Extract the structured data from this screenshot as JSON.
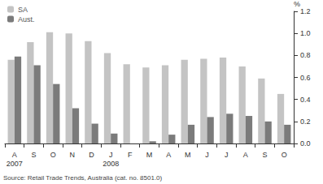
{
  "chart_data": {
    "type": "bar",
    "y_label": "%",
    "categories": [
      "A\n2007",
      "S",
      "O",
      "N",
      "D",
      "J\n2008",
      "F",
      "M",
      "A",
      "M",
      "J",
      "J",
      "A",
      "S",
      "O"
    ],
    "series": [
      {
        "name": "SA",
        "color": "#c4c4c4",
        "values": [
          0.76,
          0.92,
          1.01,
          1.0,
          0.93,
          0.82,
          0.72,
          0.69,
          0.71,
          0.76,
          0.77,
          0.78,
          0.7,
          0.59,
          0.45
        ]
      },
      {
        "name": "Aust.",
        "color": "#7b7b7b",
        "values": [
          0.79,
          0.71,
          0.54,
          0.32,
          0.18,
          0.09,
          0.0,
          0.02,
          0.08,
          0.17,
          0.24,
          0.27,
          0.25,
          0.2,
          0.17
        ]
      }
    ],
    "ylim": [
      0,
      1.2
    ],
    "yticks": [
      {
        "value": 0,
        "label": "0.0"
      },
      0.2,
      0.4,
      0.6,
      0.8,
      {
        "value": 1,
        "label": "1.0"
      },
      1.2
    ],
    "grid": false,
    "legend": "top-left",
    "annotations": [
      "Source: Retail Trade Trends, Australia (cat. no. 8501.0)"
    ]
  }
}
